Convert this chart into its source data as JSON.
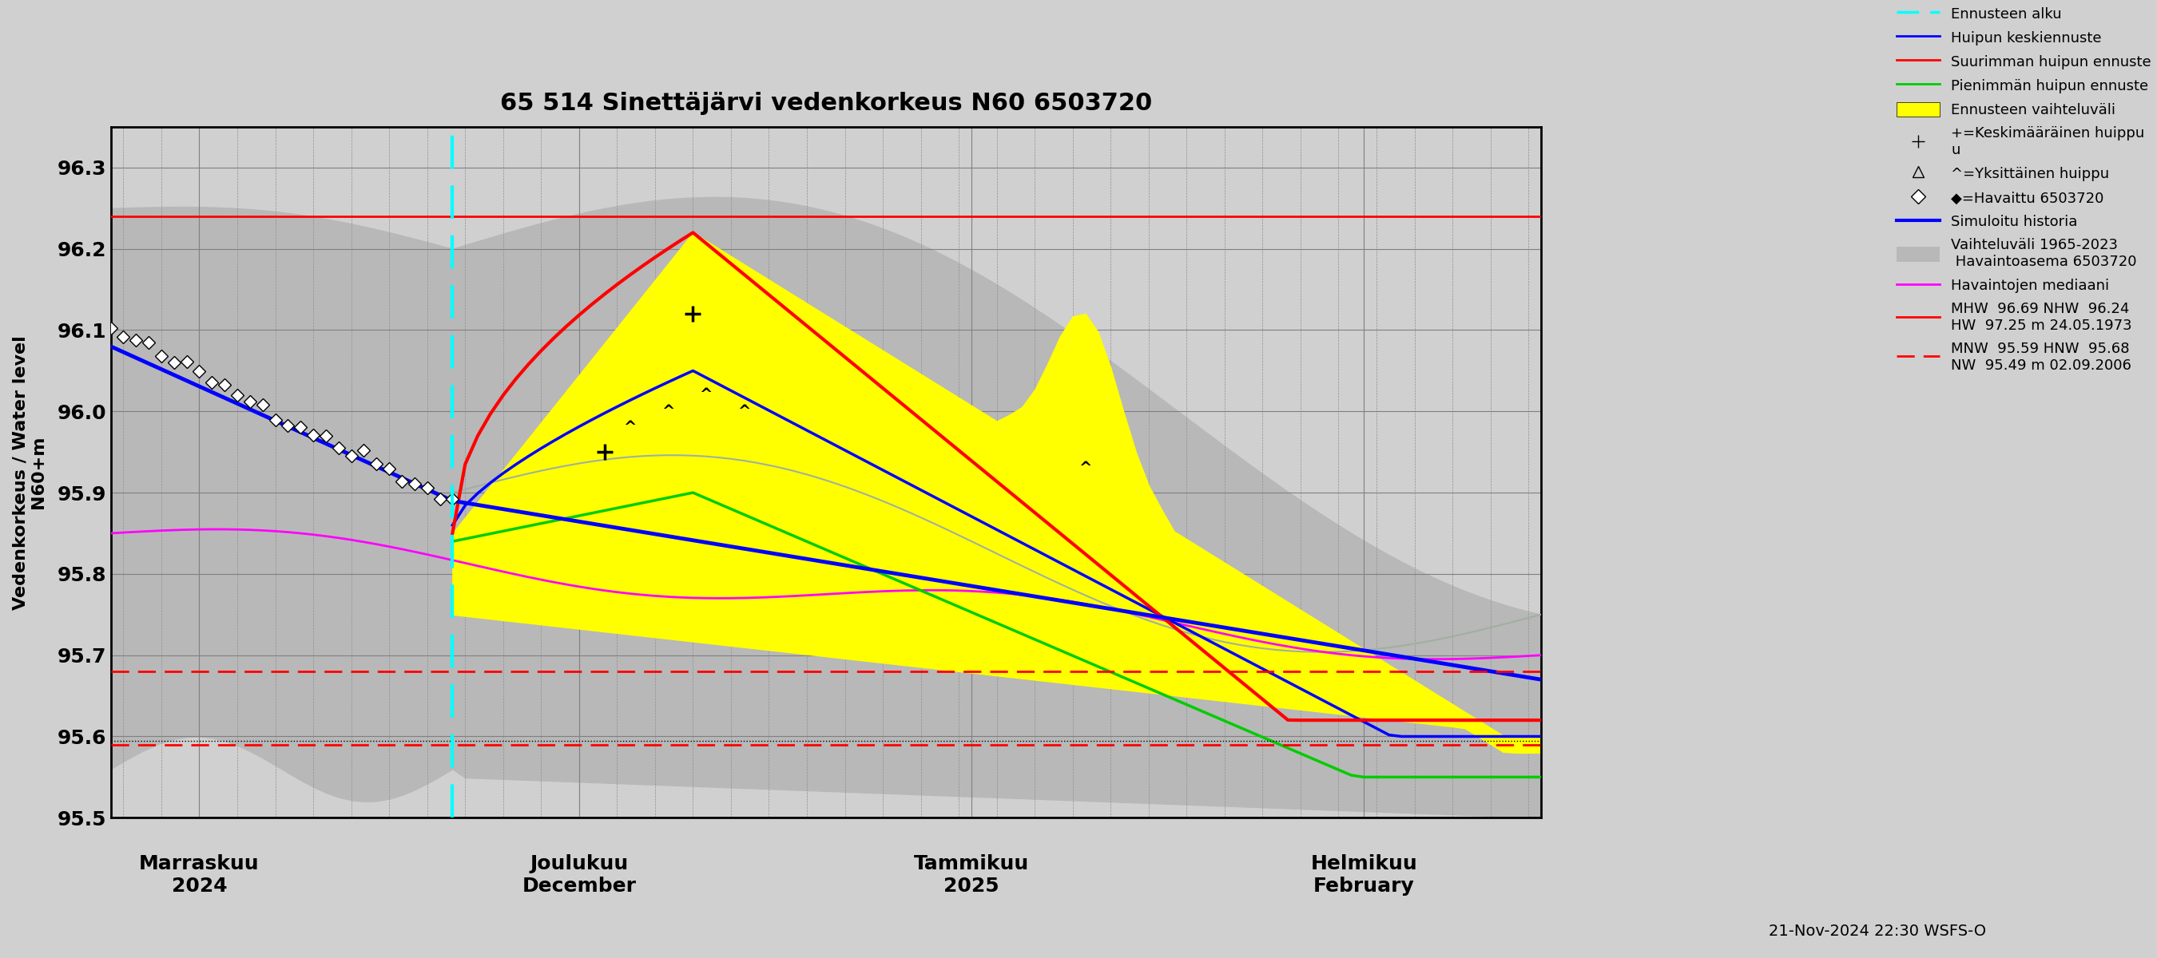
{
  "title": "65 514 Sinettäjärvi vedenkorkeus N60 6503720",
  "ylabel_fi": "Vedenkorkeus / Water level",
  "ylabel_en": "N60+m",
  "ylim": [
    95.5,
    96.35
  ],
  "yticks": [
    95.5,
    95.6,
    95.7,
    95.8,
    95.9,
    96.0,
    96.1,
    96.2,
    96.3
  ],
  "forecast_start": "2024-11-21",
  "hline_red_solid": 96.24,
  "hline_red_dashed1": 95.68,
  "hline_red_dashed2": 95.59,
  "hline_black_dotted": 95.595,
  "legend_entries": [
    "Ennusteen alku",
    "Huipun keskiennuste",
    "Suurimman huipun ennuste",
    "Pienimmän huipun ennuste",
    "Ennusteen vaihteluväli",
    "+=Keskimääräinen huippu",
    "^=Yksittäinen huippu",
    "◆=Havaittu 6503720",
    "Simuloitu historia",
    "Vaihteluväli 1965-2023\n Havaintoasema 6503720",
    "Havaintojen mediaani",
    "MHW  96.69 NHW  96.24\nHW  97.25 m 24.05.1973",
    "MNW  95.59 HNW  95.68\nNW  95.49 m 02.09.2006"
  ],
  "footnote": "21-Nov-2024 22:30 WSFS-O",
  "colors": {
    "background": "#d0d0d0",
    "plot_bg": "#d0d0d0",
    "yellow_fill": "#ffff00",
    "gray_fill": "#c0c0c0",
    "red_solid": "#ff0000",
    "blue_solid": "#0000ff",
    "green_solid": "#00cc00",
    "magenta": "#ff00ff",
    "cyan_dashed": "#00ffff",
    "light_gray_line": "#b0b8b0",
    "red_dashed": "#ff0000",
    "black_dotted": "#000000"
  }
}
